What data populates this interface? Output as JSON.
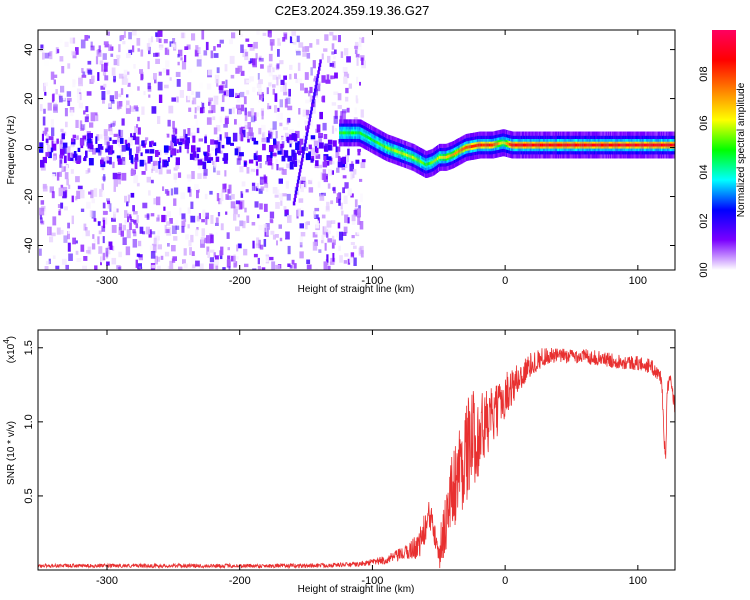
{
  "title": "C2E3.2024.359.19.36.G27",
  "chart_data": [
    {
      "type": "heatmap",
      "xlabel": "Height of straight line (km)",
      "ylabel": "Frequency (Hz)",
      "xlim": [
        -352,
        128
      ],
      "ylim": [
        -50,
        48
      ],
      "xticks": [
        -300,
        -200,
        -100,
        0,
        100
      ],
      "yticks": [
        -40,
        -20,
        0,
        20,
        40
      ],
      "colorbar": {
        "label": "Normalized spectral amplitude",
        "ticks": [
          "0.0",
          "0.2",
          "0.4",
          "0.6",
          "0.8"
        ],
        "tick_values": [
          0,
          0.2,
          0.4,
          0.6,
          0.8
        ],
        "range": [
          0,
          0.98
        ],
        "colormap": [
          "#ffffff",
          "#7a00ff",
          "#0000ff",
          "#00ffff",
          "#00ff00",
          "#ffff00",
          "#ff8000",
          "#ff0000",
          "#ff0060"
        ]
      },
      "noise_region_x": [
        -352,
        -108
      ],
      "ridge": {
        "x": [
          -125,
          -110,
          -100,
          -90,
          -80,
          -70,
          -60,
          -55,
          -50,
          -45,
          -40,
          -30,
          -20,
          -10,
          -2,
          5,
          20,
          50,
          100,
          128
        ],
        "y": [
          6,
          6,
          3,
          0,
          -2,
          -4,
          -7,
          -6,
          -4,
          -4,
          -3,
          0,
          1,
          1,
          2,
          1,
          1,
          1,
          1,
          1
        ],
        "amplitude": [
          0.5,
          0.5,
          0.5,
          0.55,
          0.6,
          0.6,
          0.5,
          0.55,
          0.6,
          0.65,
          0.7,
          0.8,
          0.85,
          0.85,
          0.6,
          0.9,
          0.9,
          0.9,
          0.9,
          0.9
        ]
      }
    },
    {
      "type": "line",
      "xlabel": "Height of straight line (km)",
      "ylabel": "SNR (10 * v/v)",
      "scale_label": "(x10",
      "scale_exp": "4",
      "scale_close": ")",
      "xlim": [
        -352,
        128
      ],
      "ylim": [
        0,
        1.62
      ],
      "xticks": [
        -300,
        -200,
        -100,
        0,
        100
      ],
      "yticks": [
        0.5,
        1.0,
        1.5
      ],
      "ytick_labels": [
        "0.5",
        "1.0",
        "1.5"
      ],
      "color": "#e83030",
      "envelope": {
        "x": [
          -352,
          -150,
          -110,
          -90,
          -75,
          -65,
          -60,
          -56,
          -52,
          -49,
          -45,
          -40,
          -35,
          -30,
          -25,
          -20,
          -15,
          -10,
          -5,
          0,
          10,
          20,
          30,
          40,
          60,
          80,
          100,
          110,
          118,
          120,
          121,
          122,
          124,
          128
        ],
        "y": [
          0.03,
          0.03,
          0.04,
          0.07,
          0.12,
          0.18,
          0.3,
          0.38,
          0.28,
          0.15,
          0.35,
          0.55,
          0.7,
          0.82,
          0.92,
          0.95,
          1.0,
          1.05,
          1.1,
          1.2,
          1.3,
          1.4,
          1.45,
          1.45,
          1.45,
          1.42,
          1.4,
          1.38,
          1.3,
          0.85,
          0.75,
          1.2,
          1.3,
          1.1
        ]
      },
      "noise_amplitude": {
        "x": [
          -352,
          -110,
          -90,
          -75,
          -60,
          -50,
          -40,
          -30,
          -20,
          -10,
          0,
          20,
          40,
          100,
          128
        ],
        "y": [
          0.012,
          0.015,
          0.03,
          0.05,
          0.12,
          0.15,
          0.28,
          0.35,
          0.3,
          0.2,
          0.15,
          0.08,
          0.05,
          0.05,
          0.05
        ]
      }
    }
  ]
}
